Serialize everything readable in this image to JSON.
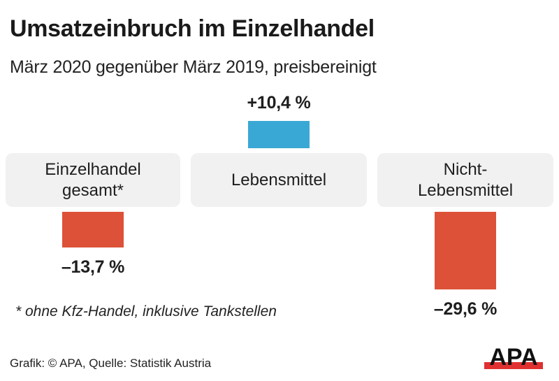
{
  "title": "Umsatzeinbruch im Einzelhandel",
  "subtitle": "März 2020 gegenüber März 2019, preisbereinigt",
  "footnote": "* ohne Kfz-Handel, inklusive Tankstellen",
  "source": "Grafik: © APA, Quelle: Statistik Austria",
  "logo": {
    "text": "APA",
    "icon": "apa-logo-icon"
  },
  "colors": {
    "positive": "#3aa8d4",
    "negative": "#dc5137",
    "box": "#f1f1f1",
    "logo_red": "#e03030"
  },
  "chart_data": {
    "type": "bar",
    "title": "Umsatzeinbruch im Einzelhandel",
    "subtitle": "März 2020 gegenüber März 2019, preisbereinigt",
    "categories": [
      "Einzelhandel\ngesamt*",
      "Lebensmittel",
      "Nicht-\nLebensmittel"
    ],
    "values": [
      -13.7,
      10.4,
      -29.6
    ],
    "value_labels": [
      "–13,7 %",
      "+10,4 %",
      "–29,6 %"
    ],
    "unit": "%",
    "xlabel": "",
    "ylabel": "",
    "grid": false,
    "legend": "none"
  }
}
